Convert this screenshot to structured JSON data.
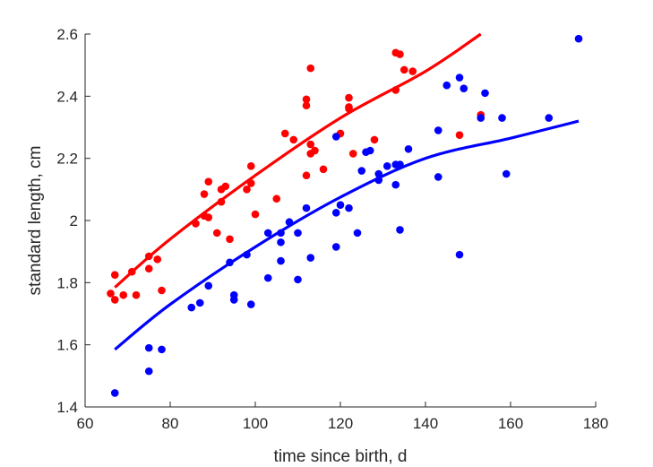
{
  "chart_data": {
    "type": "scatter",
    "title": "",
    "xlabel": "time since birth, d",
    "ylabel": "standard length, cm",
    "xlim": [
      60,
      180
    ],
    "ylim": [
      1.4,
      2.6
    ],
    "xticks": [
      60,
      80,
      100,
      120,
      140,
      160,
      180
    ],
    "yticks": [
      1.4,
      1.6,
      1.8,
      2,
      2.2,
      2.4,
      2.6
    ],
    "xtick_labels": [
      "60",
      "80",
      "100",
      "120",
      "140",
      "160",
      "180"
    ],
    "ytick_labels": [
      "1.4",
      "1.6",
      "1.8",
      "2",
      "2.2",
      "2.4",
      "2.6"
    ],
    "grid": false,
    "legend": "none",
    "series": [
      {
        "color": "#ff0000",
        "points": [
          [
            66,
            1.765
          ],
          [
            67,
            1.745
          ],
          [
            67,
            1.825
          ],
          [
            69,
            1.76
          ],
          [
            71,
            1.835
          ],
          [
            72,
            1.76
          ],
          [
            75,
            1.845
          ],
          [
            75,
            1.885
          ],
          [
            77,
            1.875
          ],
          [
            78,
            1.775
          ],
          [
            86,
            1.99
          ],
          [
            88,
            2.085
          ],
          [
            88,
            2.015
          ],
          [
            89,
            2.125
          ],
          [
            89,
            2.01
          ],
          [
            91,
            1.96
          ],
          [
            92,
            2.1
          ],
          [
            92,
            2.06
          ],
          [
            93,
            2.11
          ],
          [
            94,
            1.94
          ],
          [
            98,
            2.1
          ],
          [
            99,
            2.175
          ],
          [
            99,
            2.12
          ],
          [
            100,
            2.02
          ],
          [
            105,
            2.07
          ],
          [
            107,
            2.28
          ],
          [
            109,
            2.26
          ],
          [
            112,
            2.37
          ],
          [
            112,
            2.39
          ],
          [
            112,
            2.145
          ],
          [
            113,
            2.49
          ],
          [
            113,
            2.245
          ],
          [
            113,
            2.215
          ],
          [
            114,
            2.225
          ],
          [
            116,
            2.165
          ],
          [
            120,
            2.28
          ],
          [
            122,
            2.36
          ],
          [
            122,
            2.395
          ],
          [
            122,
            2.365
          ],
          [
            123,
            2.215
          ],
          [
            128,
            2.26
          ],
          [
            133,
            2.54
          ],
          [
            133,
            2.42
          ],
          [
            134,
            2.535
          ],
          [
            135,
            2.485
          ],
          [
            137,
            2.48
          ],
          [
            148,
            2.275
          ],
          [
            153,
            2.34
          ]
        ],
        "fit_curve": [
          [
            67,
            1.785
          ],
          [
            80,
            1.94
          ],
          [
            100,
            2.145
          ],
          [
            120,
            2.33
          ],
          [
            140,
            2.48
          ],
          [
            153,
            2.6
          ]
        ]
      },
      {
        "color": "#0000ff",
        "points": [
          [
            67,
            1.445
          ],
          [
            75,
            1.515
          ],
          [
            75,
            1.59
          ],
          [
            78,
            1.585
          ],
          [
            85,
            1.72
          ],
          [
            87,
            1.735
          ],
          [
            89,
            1.79
          ],
          [
            94,
            1.865
          ],
          [
            95,
            1.745
          ],
          [
            95,
            1.76
          ],
          [
            98,
            1.89
          ],
          [
            99,
            1.73
          ],
          [
            103,
            1.96
          ],
          [
            103,
            1.815
          ],
          [
            106,
            1.93
          ],
          [
            106,
            1.96
          ],
          [
            106,
            1.87
          ],
          [
            108,
            1.995
          ],
          [
            110,
            1.96
          ],
          [
            110,
            1.81
          ],
          [
            112,
            2.04
          ],
          [
            113,
            1.88
          ],
          [
            119,
            1.915
          ],
          [
            119,
            2.27
          ],
          [
            119,
            2.025
          ],
          [
            120,
            2.05
          ],
          [
            122,
            2.04
          ],
          [
            124,
            1.96
          ],
          [
            125,
            2.16
          ],
          [
            126,
            2.22
          ],
          [
            127,
            2.225
          ],
          [
            129,
            2.15
          ],
          [
            129,
            2.13
          ],
          [
            131,
            2.175
          ],
          [
            133,
            2.18
          ],
          [
            133,
            2.115
          ],
          [
            134,
            2.18
          ],
          [
            134,
            1.97
          ],
          [
            136,
            2.23
          ],
          [
            143,
            2.29
          ],
          [
            143,
            2.14
          ],
          [
            145,
            2.435
          ],
          [
            148,
            2.46
          ],
          [
            148,
            1.89
          ],
          [
            149,
            2.425
          ],
          [
            153,
            2.33
          ],
          [
            154,
            2.41
          ],
          [
            158,
            2.33
          ],
          [
            159,
            2.15
          ],
          [
            169,
            2.33
          ],
          [
            176,
            2.585
          ]
        ],
        "fit_curve": [
          [
            67,
            1.585
          ],
          [
            80,
            1.73
          ],
          [
            100,
            1.915
          ],
          [
            120,
            2.075
          ],
          [
            140,
            2.2
          ],
          [
            160,
            2.265
          ],
          [
            176,
            2.32
          ]
        ]
      }
    ]
  }
}
